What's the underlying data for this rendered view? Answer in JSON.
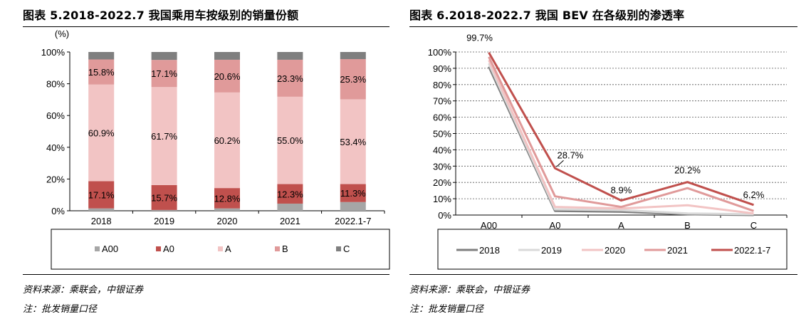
{
  "left": {
    "title": "图表 5.2018-2022.7 我国乘用车按级别的销量份额",
    "source": "资料来源：乘联会，中银证券",
    "note": "注：批发销量口径"
  },
  "right": {
    "title": "图表 6.2018-2022.7 我国 BEV 在各级别的渗透率",
    "source": "资料来源：乘联会，中银证券",
    "note": "注：批发销量口径"
  },
  "chart_data": [
    {
      "type": "bar",
      "stacked": true,
      "unit_label": "(%)",
      "categories": [
        "2018",
        "2019",
        "2020",
        "2021",
        "2022.1-7"
      ],
      "yticks": [
        "0%",
        "20%",
        "40%",
        "60%",
        "80%",
        "100%"
      ],
      "ylim": [
        0,
        100
      ],
      "grid": false,
      "legend_position": "bottom",
      "series": [
        {
          "name": "A00",
          "color": "#a6a6a6",
          "values": [
            1.5,
            0.5,
            1.5,
            4.5,
            5.5
          ]
        },
        {
          "name": "A0",
          "color": "#c0504d",
          "values": [
            17.1,
            15.7,
            12.8,
            12.3,
            11.3
          ]
        },
        {
          "name": "A",
          "color": "#f2c4c4",
          "values": [
            60.9,
            61.7,
            60.2,
            55.0,
            53.4
          ]
        },
        {
          "name": "B",
          "color": "#e09a9a",
          "values": [
            15.8,
            17.1,
            20.6,
            23.3,
            25.3
          ]
        },
        {
          "name": "C",
          "color": "#7f7f7f",
          "values": [
            4.7,
            5.0,
            4.9,
            4.9,
            4.5
          ]
        }
      ],
      "data_labels": {
        "A0": [
          "17.1%",
          "15.7%",
          "12.8%",
          "12.3%",
          "11.3%"
        ],
        "A": [
          "60.9%",
          "61.7%",
          "60.2%",
          "55.0%",
          "53.4%"
        ],
        "B": [
          "15.8%",
          "17.1%",
          "20.6%",
          "23.3%",
          "25.3%"
        ]
      }
    },
    {
      "type": "line",
      "categories": [
        "A00",
        "A0",
        "A",
        "B",
        "C"
      ],
      "yticks": [
        "0%",
        "10%",
        "20%",
        "30%",
        "40%",
        "50%",
        "60%",
        "70%",
        "80%",
        "90%",
        "100%"
      ],
      "ylim": [
        0,
        100
      ],
      "grid": true,
      "legend_position": "bottom",
      "series": [
        {
          "name": "2018",
          "color": "#7f7f7f",
          "values": [
            91,
            2.5,
            2,
            0.5,
            0
          ]
        },
        {
          "name": "2019",
          "color": "#d9d9d9",
          "values": [
            93,
            3.5,
            3,
            1,
            0.5
          ]
        },
        {
          "name": "2020",
          "color": "#f2c4c4",
          "values": [
            95,
            5,
            4,
            6,
            1
          ]
        },
        {
          "name": "2021",
          "color": "#e09a9a",
          "values": [
            97,
            11.5,
            5,
            16.5,
            2.5
          ]
        },
        {
          "name": "2022.1-7",
          "color": "#c0504d",
          "values": [
            99.7,
            28.7,
            8.9,
            20.2,
            6.2
          ]
        }
      ],
      "annotations": [
        {
          "category": "A00",
          "value": 99.7,
          "text": "99.7%"
        },
        {
          "category": "A0",
          "value": 28.7,
          "text": "28.7%"
        },
        {
          "category": "A",
          "value": 8.9,
          "text": "8.9%"
        },
        {
          "category": "B",
          "value": 20.2,
          "text": "20.2%"
        },
        {
          "category": "C",
          "value": 6.2,
          "text": "6.2%"
        }
      ]
    }
  ]
}
